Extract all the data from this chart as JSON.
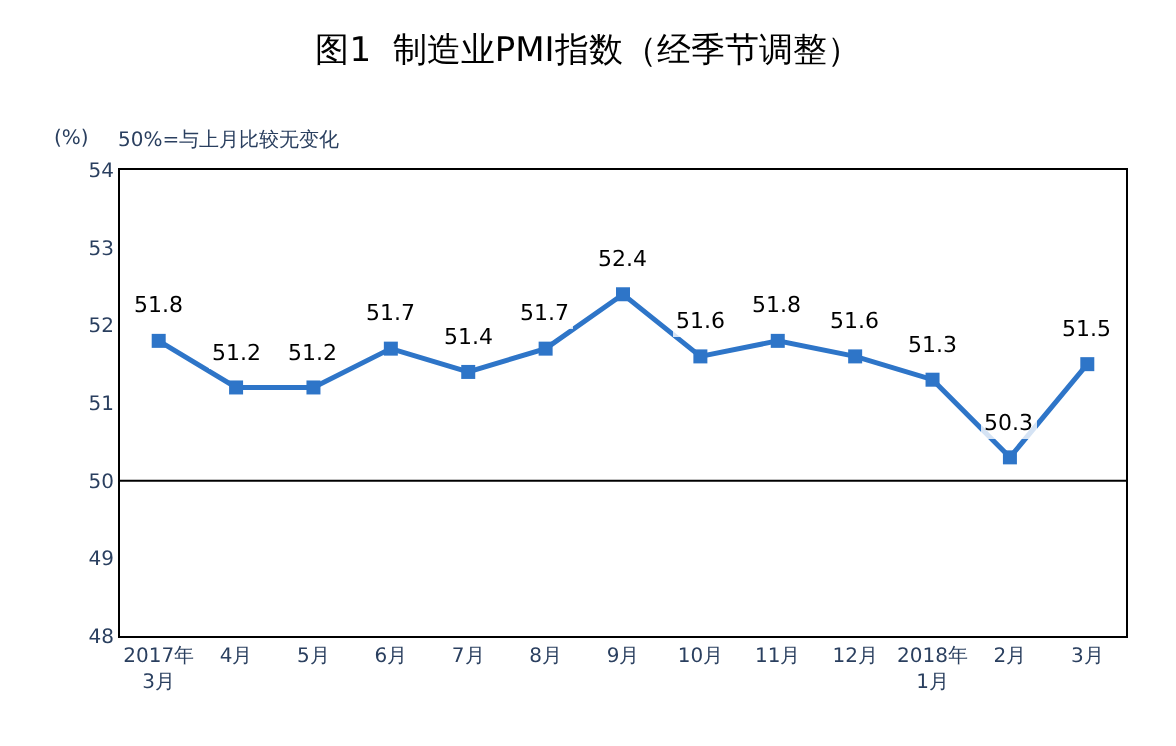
{
  "chart_data": {
    "type": "line",
    "title": "图1  制造业PMI指数（经季节调整）",
    "ylabel": "(%)",
    "annotations": [
      "50%=与上月比较无变化"
    ],
    "categories": [
      "2017年\n3月",
      "4月",
      "5月",
      "6月",
      "7月",
      "8月",
      "9月",
      "10月",
      "11月",
      "12月",
      "2018年\n1月",
      "2月",
      "3月"
    ],
    "series": [
      {
        "color": "#2e75c8",
        "values": [
          51.8,
          51.2,
          51.2,
          51.7,
          51.4,
          51.7,
          52.4,
          51.6,
          51.8,
          51.6,
          51.3,
          50.3,
          51.5
        ]
      }
    ],
    "ylim": [
      48,
      54
    ],
    "yticks": [
      48,
      49,
      50,
      51,
      52,
      53,
      54
    ],
    "ref_lines": [
      {
        "axis": "y",
        "value": 50,
        "color": "#000000"
      }
    ],
    "data_labels": true,
    "marker": "square",
    "line_style": "solid",
    "legend": false
  }
}
